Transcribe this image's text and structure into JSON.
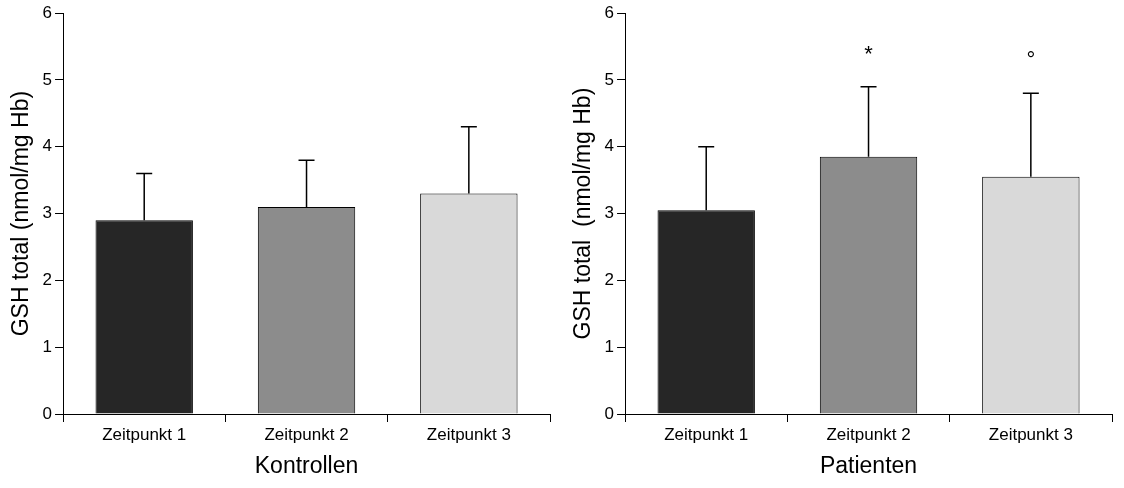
{
  "chart_data": [
    {
      "type": "bar",
      "xlabel": "Kontrollen",
      "ylabel": "GSH total (nmol/mg Hb)",
      "categories": [
        "Zeitpunkt 1",
        "Zeitpunkt 2",
        "Zeitpunkt 3"
      ],
      "values": [
        2.9,
        3.1,
        3.3
      ],
      "colors": [
        "#262626",
        "#8c8c8c",
        "#d9d9d9"
      ],
      "errors": [
        [
          2.9,
          3.6
        ],
        [
          3.1,
          3.8
        ],
        [
          3.3,
          4.3
        ]
      ],
      "ylim": [
        0,
        6
      ],
      "yticks": [
        0,
        1,
        2,
        3,
        4,
        5,
        6
      ],
      "grid": false,
      "legend": false
    },
    {
      "type": "bar",
      "xlabel": "Patienten",
      "ylabel": "GSH total  (nmol/mg Hb)",
      "categories": [
        "Zeitpunkt 1",
        "Zeitpunkt 2",
        "Zeitpunkt 3"
      ],
      "values": [
        3.05,
        3.85,
        3.55
      ],
      "colors": [
        "#262626",
        "#8c8c8c",
        "#d9d9d9"
      ],
      "errors": [
        [
          3.05,
          4.0
        ],
        [
          3.85,
          4.9
        ],
        [
          3.55,
          4.8
        ]
      ],
      "ylim": [
        0,
        6
      ],
      "yticks": [
        0,
        1,
        2,
        3,
        4,
        5,
        6
      ],
      "grid": false,
      "legend": false,
      "annotations": [
        "*",
        "°"
      ]
    }
  ]
}
